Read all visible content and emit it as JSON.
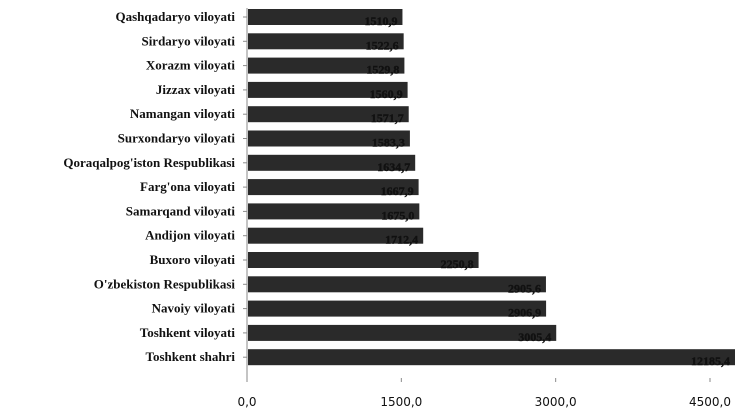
{
  "chart_data": {
    "type": "bar",
    "orientation": "horizontal",
    "categories": [
      "Qashqadaryo viloyati",
      "Sirdaryo viloyati",
      "Xorazm viloyati",
      "Jizzax viloyati",
      "Namangan viloyati",
      "Surxondaryo viloyati",
      "Qoraqalpog'iston Respublikasi",
      "Farg'ona viloyati",
      "Samarqand viloyati",
      "Andijon viloyati",
      "Buxoro viloyati",
      "O'zbekiston Respublikasi",
      "Navoiy viloyati",
      "Toshkent viloyati",
      "Toshkent shahri"
    ],
    "values": [
      1510.9,
      1522.6,
      1529.8,
      1560.9,
      1571.7,
      1583.3,
      1634.7,
      1667.9,
      1675.0,
      1712.4,
      2250.8,
      2905.6,
      2906.9,
      3005.4,
      12185.4
    ],
    "value_labels": [
      "1510,9",
      "1522,6",
      "1529,8",
      "1560,9",
      "1571,7",
      "1583,3",
      "1634,7",
      "1667,9",
      "1675,0",
      "1712,4",
      "2250,8",
      "2905,6",
      "2906,9",
      "3005,4",
      "12185,4"
    ],
    "x_ticks": [
      0,
      1500,
      3000,
      4500
    ],
    "x_tick_labels": [
      "0,0",
      "1500,0",
      "3000,0",
      "4500,0"
    ],
    "xlim": [
      0,
      5000
    ],
    "title": "",
    "xlabel": "",
    "ylabel": "",
    "grid": false,
    "legend": "none",
    "bar_color": "#2a2a2a",
    "axis_color": "#8a8a8a"
  }
}
